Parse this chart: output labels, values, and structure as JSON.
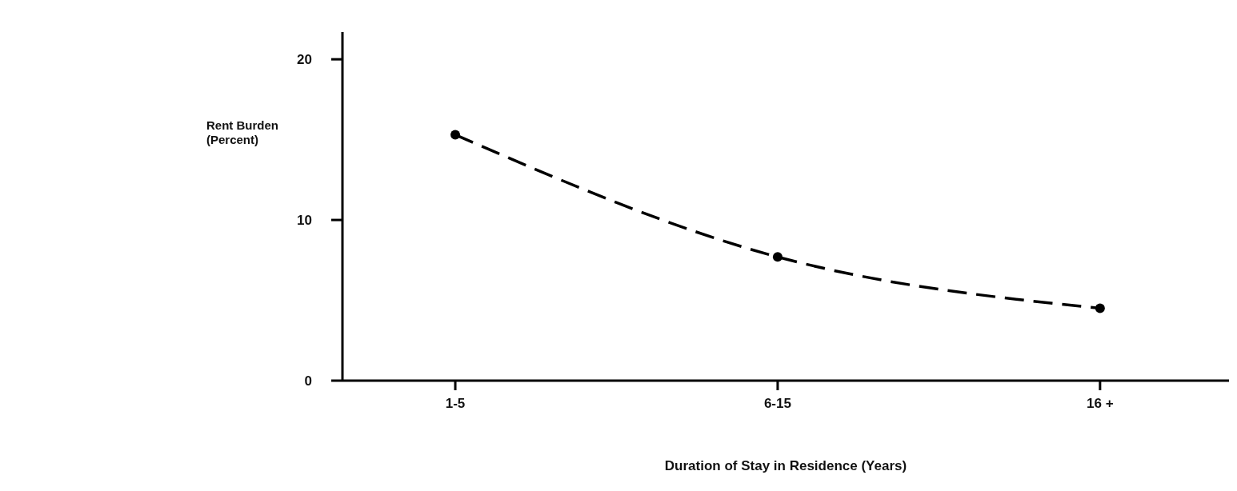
{
  "chart_data": {
    "type": "line",
    "xlabel": "Duration of Stay in Residence (Years)",
    "ylabel": "Rent Burden (Percent)",
    "categories": [
      "1-5",
      "6-15",
      "16 +"
    ],
    "ylim": [
      0,
      21.7
    ],
    "yticks": [
      0,
      10,
      20
    ],
    "line_style": "dashed",
    "marker": "circle",
    "series": [
      {
        "color": "#000000",
        "values": [
          15.3,
          7.7,
          4.5
        ]
      }
    ]
  }
}
